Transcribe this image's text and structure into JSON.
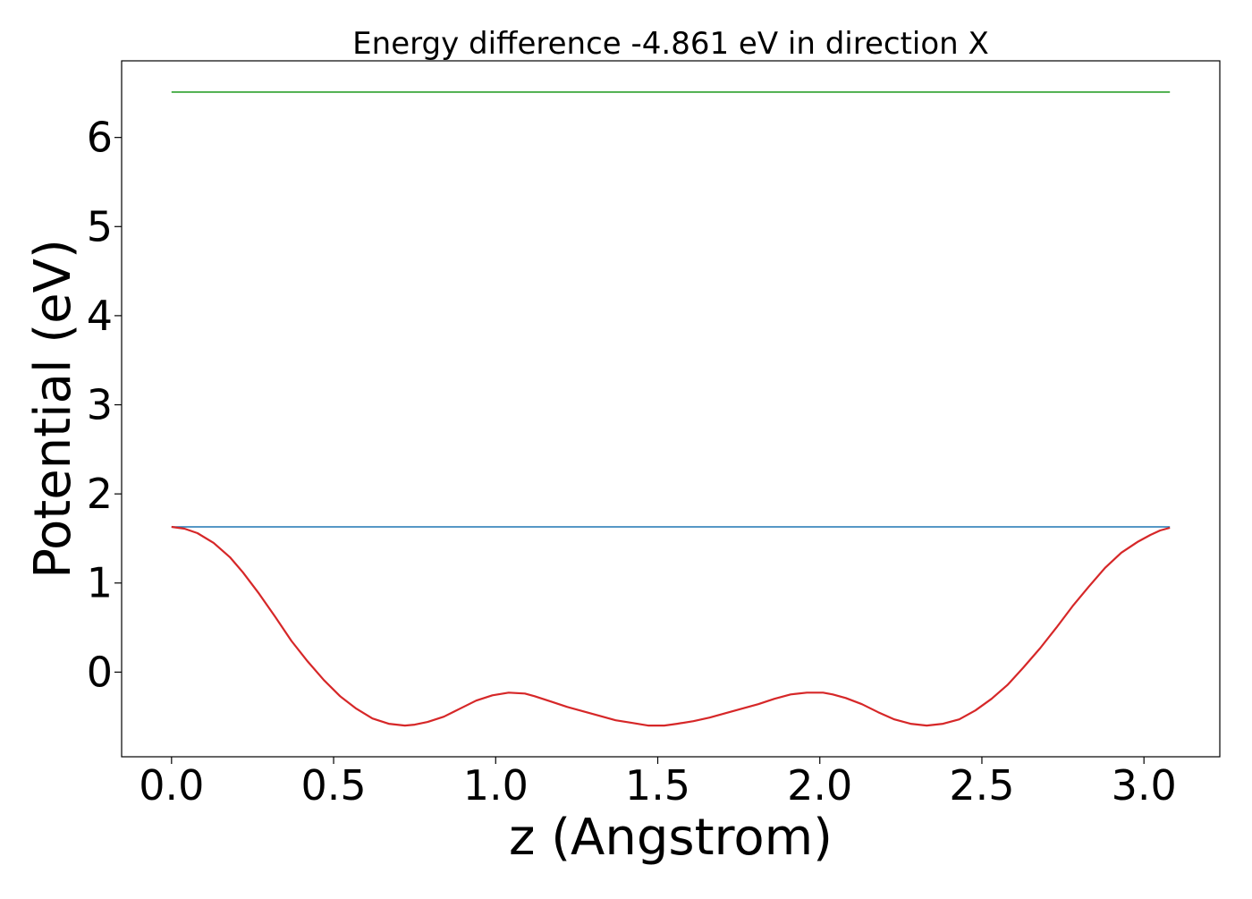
{
  "chart_data": {
    "type": "line",
    "title": "Energy difference -4.861 eV in direction X",
    "xlabel": "z (Angstrom)",
    "ylabel": "Potential (eV)",
    "xlim": [
      -0.154,
      3.234
    ],
    "ylim": [
      -0.95,
      6.86
    ],
    "xticks": [
      0.0,
      0.5,
      1.0,
      1.5,
      2.0,
      2.5,
      3.0
    ],
    "xtick_labels": [
      "0.0",
      "0.5",
      "1.0",
      "1.5",
      "2.0",
      "2.5",
      "3.0"
    ],
    "yticks": [
      0,
      1,
      2,
      3,
      4,
      5,
      6
    ],
    "ytick_labels": [
      "0",
      "1",
      "2",
      "3",
      "4",
      "5",
      "6"
    ],
    "grid": false,
    "series": [
      {
        "color": "#2ca02c",
        "x": [
          0.0,
          3.08
        ],
        "y": [
          6.51,
          6.51
        ]
      },
      {
        "color": "#1f77b4",
        "x": [
          0.0,
          3.08
        ],
        "y": [
          1.63,
          1.63
        ]
      },
      {
        "color": "#d62728",
        "x": [
          0.0,
          0.04,
          0.08,
          0.13,
          0.18,
          0.22,
          0.27,
          0.32,
          0.37,
          0.42,
          0.47,
          0.52,
          0.57,
          0.62,
          0.67,
          0.72,
          0.75,
          0.79,
          0.84,
          0.89,
          0.94,
          0.99,
          1.04,
          1.09,
          1.12,
          1.17,
          1.22,
          1.27,
          1.32,
          1.37,
          1.42,
          1.47,
          1.52,
          1.56,
          1.61,
          1.66,
          1.71,
          1.76,
          1.81,
          1.86,
          1.91,
          1.96,
          2.01,
          2.04,
          2.08,
          2.13,
          2.18,
          2.23,
          2.28,
          2.33,
          2.38,
          2.43,
          2.48,
          2.53,
          2.58,
          2.63,
          2.68,
          2.73,
          2.78,
          2.83,
          2.88,
          2.93,
          2.98,
          3.02,
          3.05,
          3.08
        ],
        "y": [
          1.63,
          1.61,
          1.56,
          1.45,
          1.29,
          1.12,
          0.88,
          0.62,
          0.35,
          0.12,
          -0.09,
          -0.27,
          -0.41,
          -0.52,
          -0.58,
          -0.6,
          -0.59,
          -0.56,
          -0.5,
          -0.41,
          -0.32,
          -0.26,
          -0.23,
          -0.24,
          -0.27,
          -0.33,
          -0.39,
          -0.44,
          -0.49,
          -0.54,
          -0.57,
          -0.6,
          -0.6,
          -0.58,
          -0.55,
          -0.51,
          -0.46,
          -0.41,
          -0.36,
          -0.3,
          -0.25,
          -0.23,
          -0.23,
          -0.25,
          -0.29,
          -0.36,
          -0.45,
          -0.53,
          -0.58,
          -0.6,
          -0.58,
          -0.53,
          -0.43,
          -0.3,
          -0.14,
          0.06,
          0.27,
          0.5,
          0.74,
          0.96,
          1.17,
          1.34,
          1.46,
          1.54,
          1.59,
          1.62
        ]
      }
    ]
  }
}
